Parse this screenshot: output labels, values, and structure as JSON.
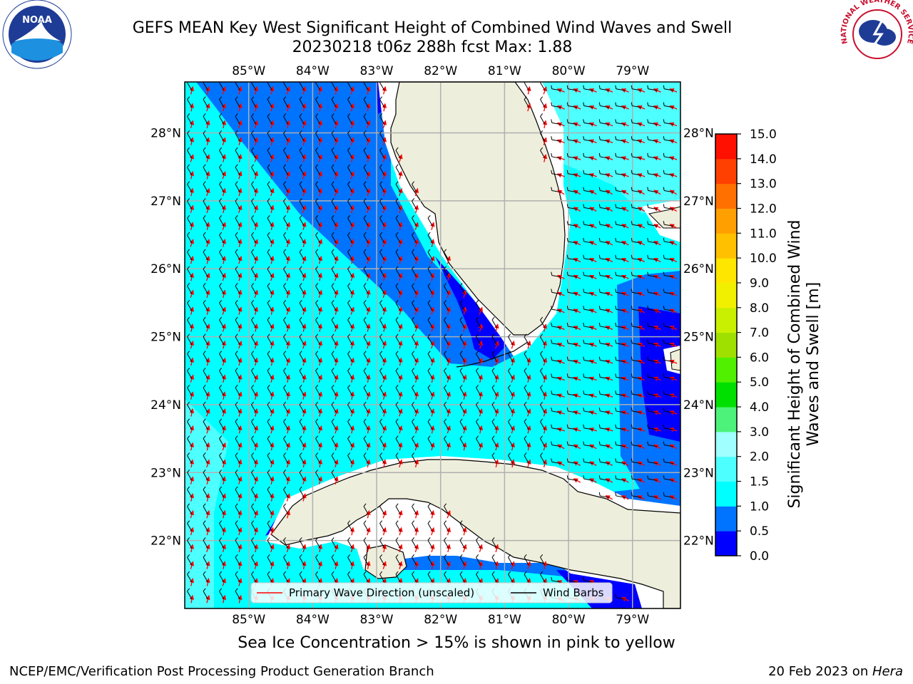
{
  "title": {
    "line1": "GEFS MEAN Key West Significant Height of Combined Wind Waves and Swell",
    "line2": "20230218 t06z 288h fcst   Max: 1.88"
  },
  "axes": {
    "lon_labels": [
      "85°W",
      "84°W",
      "83°W",
      "82°W",
      "81°W",
      "80°W",
      "79°W"
    ],
    "lat_labels": [
      "28°N",
      "27°N",
      "26°N",
      "25°N",
      "24°N",
      "23°N",
      "22°N"
    ],
    "lon_values": [
      -85,
      -84,
      -83,
      -82,
      -81,
      -80,
      -79
    ],
    "lat_values": [
      28,
      27,
      26,
      25,
      24,
      23,
      22
    ],
    "extent": {
      "lon_min": -86.0,
      "lon_max": -78.25,
      "lat_min": 21.0,
      "lat_max": 28.75
    }
  },
  "legend": {
    "wave_label": "Primary Wave Direction (unscaled)",
    "barb_label": "Wind Barbs",
    "placement": "lower-center"
  },
  "colorbar": {
    "label": "Significant Height of Combined Wind Waves and Swell [m]",
    "ticks": [
      "0.0",
      "0.5",
      "1.0",
      "1.5",
      "2.0",
      "3.0",
      "4.0",
      "5.0",
      "6.0",
      "7.0",
      "8.0",
      "9.0",
      "10.0",
      "11.0",
      "12.0",
      "13.0",
      "14.0",
      "15.0"
    ],
    "colors": [
      "#0000ff",
      "#0073ff",
      "#00ffff",
      "#4dffff",
      "#a0ffff",
      "#4df27a",
      "#00e000",
      "#50f000",
      "#a0e000",
      "#c8f000",
      "#f0f000",
      "#ffe600",
      "#ffc000",
      "#ffa000",
      "#ff7000",
      "#ff4000",
      "#ff1000"
    ]
  },
  "colors": {
    "land": "#eeeedc",
    "ice_free_water": "#ffffff",
    "wave_arrow": "#ff0000",
    "wind_barb": "#000000",
    "grid": "#b0b0b0"
  },
  "caption": "Sea Ice Concentration > 15% is shown in pink to yellow",
  "footer": {
    "left": "NCEP/EMC/Verification Post Processing Product Generation Branch",
    "right_prefix": "20 Feb 2023 on ",
    "right_host": "Hera"
  },
  "logos": {
    "left": "NOAA",
    "right": "NATIONAL WEATHER SERVICE"
  }
}
